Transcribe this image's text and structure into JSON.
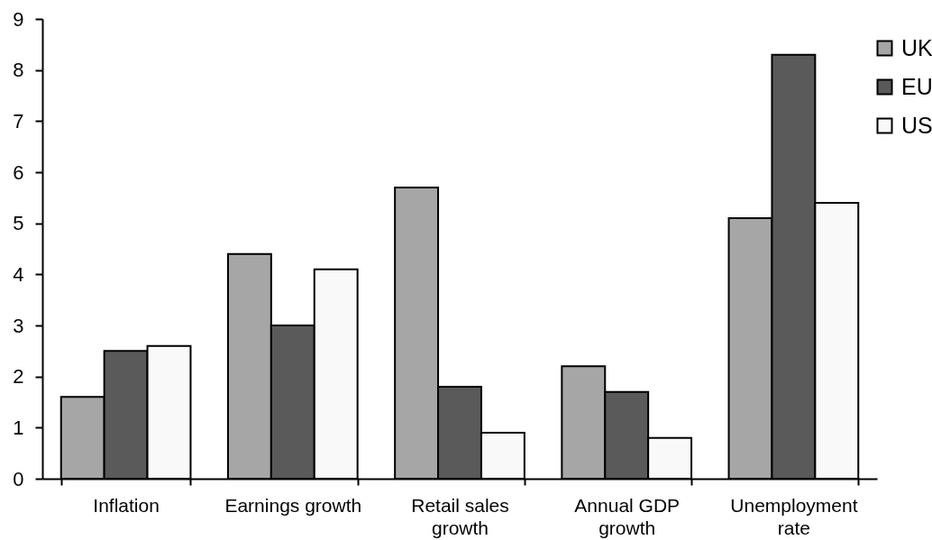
{
  "chart_data": {
    "type": "bar",
    "categories": [
      "Inflation",
      "Earnings growth",
      "Retail sales growth",
      "Annual GDP growth",
      "Unemployment rate"
    ],
    "series": [
      {
        "name": "UK",
        "color": "#a6a6a6",
        "values": [
          1.6,
          4.4,
          5.7,
          2.2,
          5.1
        ]
      },
      {
        "name": "EU",
        "color": "#5a5a5a",
        "values": [
          2.5,
          3.0,
          1.8,
          1.7,
          8.3
        ]
      },
      {
        "name": "US",
        "color": "#f9f9f9",
        "values": [
          2.6,
          4.1,
          0.9,
          0.8,
          5.4
        ]
      }
    ],
    "ylim": [
      0,
      9
    ],
    "yticks": [
      0,
      1,
      2,
      3,
      4,
      5,
      6,
      7,
      8,
      9
    ],
    "grid": false,
    "legend": "top right"
  }
}
